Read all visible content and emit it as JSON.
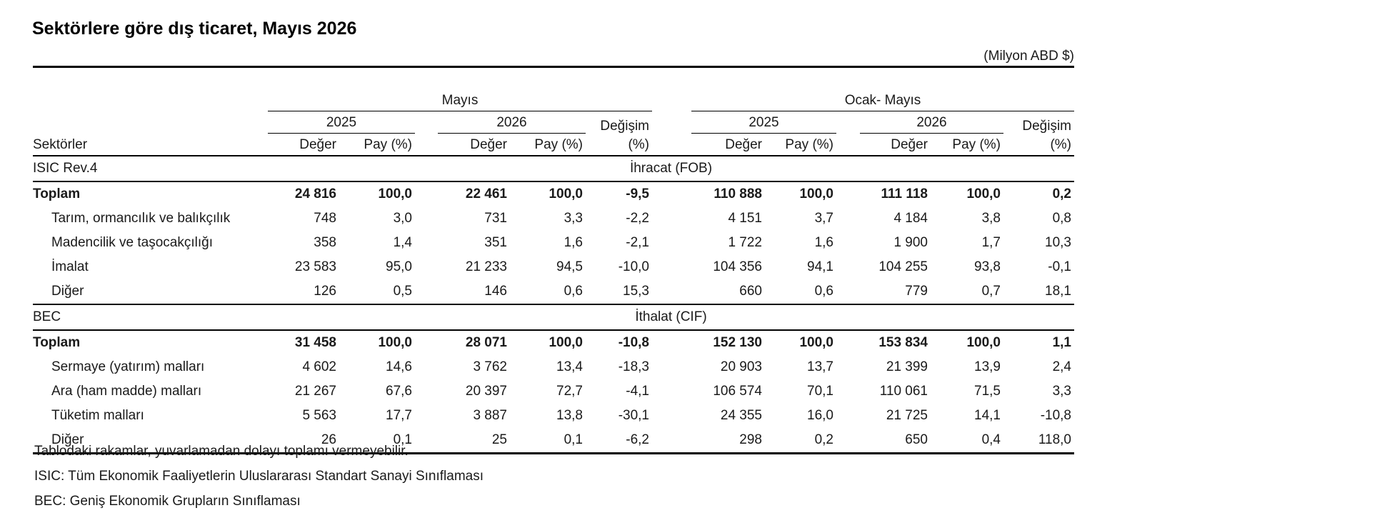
{
  "title": "Sektörlere göre dış ticaret, Mayıs 2026",
  "unit": "(Milyon ABD $)",
  "header": {
    "group_may": "Mayıs",
    "group_ytd": "Ocak- Mayıs",
    "year_2025": "2025",
    "year_2026": "2026",
    "change_top": "Değişim",
    "change_bottom": "(%)",
    "sectors": "Sektörler",
    "value": "Değer",
    "share": "Pay (%)"
  },
  "sections": [
    {
      "classification": "ISIC  Rev.4",
      "flow": "İhracat (FOB)",
      "rows": [
        {
          "label": "Toplam",
          "bold": true,
          "vals": [
            "24 816",
            "100,0",
            "22 461",
            "100,0",
            "-9,5",
            "110 888",
            "100,0",
            "111 118",
            "100,0",
            "0,2"
          ]
        },
        {
          "label": "Tarım, ormancılık ve balıkçılık",
          "bold": false,
          "vals": [
            "748",
            "3,0",
            "731",
            "3,3",
            "-2,2",
            "4 151",
            "3,7",
            "4 184",
            "3,8",
            "0,8"
          ]
        },
        {
          "label": "Madencilik ve taşocakçılığı",
          "bold": false,
          "vals": [
            "358",
            "1,4",
            "351",
            "1,6",
            "-2,1",
            "1 722",
            "1,6",
            "1 900",
            "1,7",
            "10,3"
          ]
        },
        {
          "label": "İmalat",
          "bold": false,
          "vals": [
            "23 583",
            "95,0",
            "21 233",
            "94,5",
            "-10,0",
            "104 356",
            "94,1",
            "104 255",
            "93,8",
            "-0,1"
          ]
        },
        {
          "label": "Diğer",
          "bold": false,
          "vals": [
            "126",
            "0,5",
            "146",
            "0,6",
            "15,3",
            "660",
            "0,6",
            "779",
            "0,7",
            "18,1"
          ]
        }
      ]
    },
    {
      "classification": "BEC",
      "flow": "İthalat (CIF)",
      "rows": [
        {
          "label": "Toplam",
          "bold": true,
          "vals": [
            "31 458",
            "100,0",
            "28 071",
            "100,0",
            "-10,8",
            "152 130",
            "100,0",
            "153 834",
            "100,0",
            "1,1"
          ]
        },
        {
          "label": "Sermaye (yatırım) malları",
          "bold": false,
          "vals": [
            "4 602",
            "14,6",
            "3 762",
            "13,4",
            "-18,3",
            "20 903",
            "13,7",
            "21 399",
            "13,9",
            "2,4"
          ]
        },
        {
          "label": "Ara (ham madde) malları",
          "bold": false,
          "vals": [
            "21 267",
            "67,6",
            "20 397",
            "72,7",
            "-4,1",
            "106 574",
            "70,1",
            "110 061",
            "71,5",
            "3,3"
          ]
        },
        {
          "label": "Tüketim malları",
          "bold": false,
          "vals": [
            "5 563",
            "17,7",
            "3 887",
            "13,8",
            "-30,1",
            "24 355",
            "16,0",
            "21 725",
            "14,1",
            "-10,8"
          ]
        },
        {
          "label": "Diğer",
          "bold": false,
          "vals": [
            "26",
            "0,1",
            "25",
            "0,1",
            "-6,2",
            "298",
            "0,2",
            "650",
            "0,4",
            "118,0"
          ]
        }
      ]
    }
  ],
  "notes": [
    "Tablodaki rakamlar, yuvarlamadan dolayı toplamı vermeyebilir.",
    "ISIC: Tüm Ekonomik Faaliyetlerin Uluslararası Standart Sanayi Sınıflaması",
    "BEC: Geniş Ekonomik Grupların Sınıflaması"
  ]
}
